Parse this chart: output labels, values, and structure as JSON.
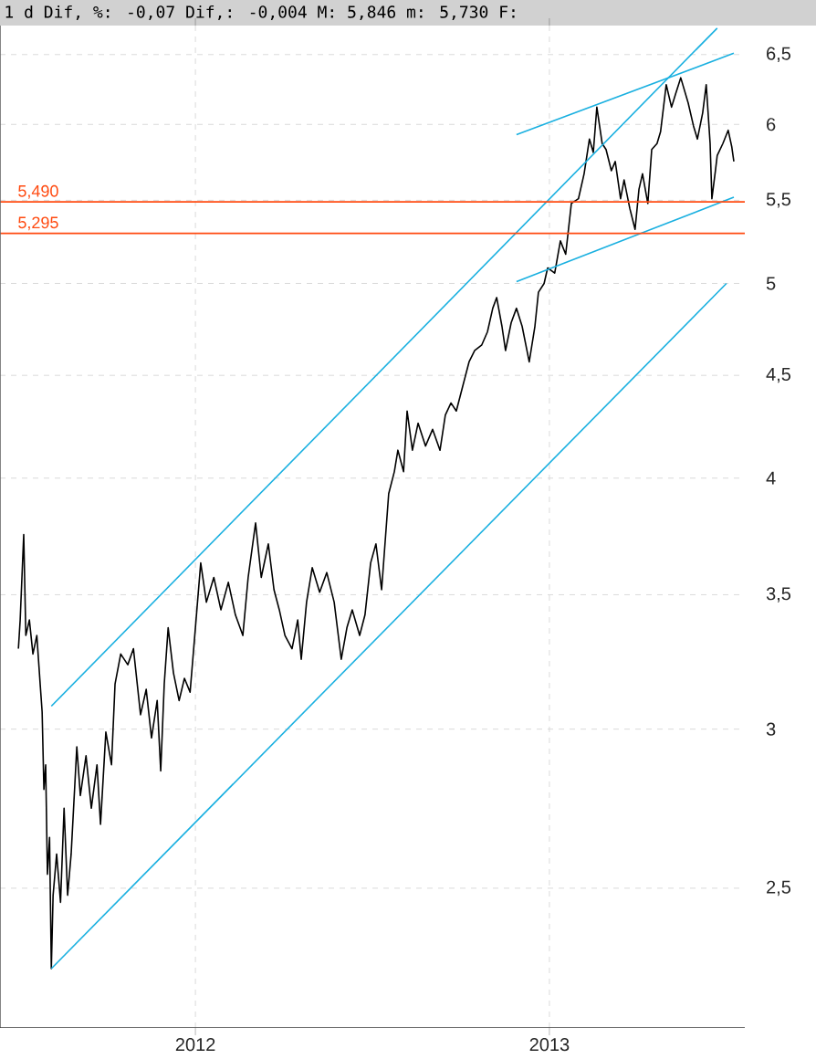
{
  "chart_data": {
    "type": "line",
    "title": "1 d Dif, %: -0,07 Dif,: -0,004 M: 5,846 m: 5,730 F:",
    "xlim": [
      2011.448,
      2013.552
    ],
    "xticks": [
      2012,
      2013
    ],
    "ylim": [
      2.13,
      6.72
    ],
    "log": true,
    "grid": true,
    "yticks": [
      {
        "value": 2.5,
        "label": "2,5"
      },
      {
        "value": 3,
        "label": "3"
      },
      {
        "value": 3.5,
        "label": "3,5"
      },
      {
        "value": 4,
        "label": "4"
      },
      {
        "value": 4.5,
        "label": "4,5"
      },
      {
        "value": 5,
        "label": "5"
      },
      {
        "value": 5.5,
        "label": "5,5"
      },
      {
        "value": 6,
        "label": "6"
      },
      {
        "value": 6.5,
        "label": "6,5"
      }
    ],
    "ref_lines": [
      {
        "axis": "y",
        "value": 5.49,
        "label": "5,490",
        "color": "#ff4a10"
      },
      {
        "axis": "y",
        "value": 5.295,
        "label": "5,295",
        "color": "#ff4a10"
      }
    ],
    "series": [
      {
        "color": "#000000",
        "x": [
          2011.5,
          2011.505,
          2011.515,
          2011.521,
          2011.531,
          2011.541,
          2011.552,
          2011.562,
          2011.567,
          2011.572,
          2011.577,
          2011.582,
          2011.588,
          2011.593,
          2011.598,
          2011.608,
          2011.619,
          2011.629,
          2011.639,
          2011.649,
          2011.665,
          2011.675,
          2011.691,
          2011.706,
          2011.722,
          2011.732,
          2011.747,
          2011.763,
          2011.773,
          2011.789,
          2011.809,
          2011.825,
          2011.845,
          2011.861,
          2011.876,
          2011.892,
          2011.902,
          2011.912,
          2011.923,
          2011.938,
          2011.954,
          2011.969,
          2011.985,
          2012.0,
          2012.015,
          2012.031,
          2012.052,
          2012.072,
          2012.093,
          2012.113,
          2012.134,
          2012.149,
          2012.17,
          2012.186,
          2012.206,
          2012.222,
          2012.237,
          2012.253,
          2012.273,
          2012.289,
          2012.299,
          2012.314,
          2012.33,
          2012.351,
          2012.371,
          2012.392,
          2012.412,
          2012.428,
          2012.443,
          2012.464,
          2012.479,
          2012.495,
          2012.51,
          2012.526,
          2012.546,
          2012.562,
          2012.572,
          2012.588,
          2012.598,
          2012.613,
          2012.629,
          2012.65,
          2012.67,
          2012.691,
          2012.706,
          2012.722,
          2012.737,
          2012.753,
          2012.773,
          2012.789,
          2012.809,
          2012.825,
          2012.84,
          2012.851,
          2012.866,
          2012.876,
          2012.892,
          2012.907,
          2012.923,
          2012.943,
          2012.959,
          2012.969,
          2012.985,
          2012.995,
          2013.015,
          2013.031,
          2013.046,
          2013.062,
          2013.082,
          2013.098,
          2013.113,
          2013.124,
          2013.134,
          2013.149,
          2013.16,
          2013.175,
          2013.186,
          2013.201,
          2013.211,
          2013.227,
          2013.242,
          2013.253,
          2013.263,
          2013.278,
          2013.289,
          2013.304,
          2013.314,
          2013.33,
          2013.345,
          2013.356,
          2013.371,
          2013.392,
          2013.407,
          2013.418,
          2013.433,
          2013.443,
          2013.454,
          2013.459,
          2013.469,
          2013.474,
          2013.49,
          2013.505,
          2013.515,
          2013.521
        ],
        "values": [
          3.29,
          3.4,
          3.75,
          3.34,
          3.4,
          3.27,
          3.34,
          3.15,
          3.06,
          2.8,
          2.88,
          2.54,
          2.65,
          2.28,
          2.48,
          2.6,
          2.46,
          2.74,
          2.48,
          2.6,
          2.94,
          2.78,
          2.91,
          2.74,
          2.88,
          2.69,
          2.99,
          2.88,
          3.16,
          3.27,
          3.23,
          3.29,
          3.05,
          3.14,
          2.97,
          3.1,
          2.86,
          3.16,
          3.37,
          3.2,
          3.1,
          3.18,
          3.13,
          3.37,
          3.63,
          3.47,
          3.57,
          3.44,
          3.55,
          3.42,
          3.34,
          3.57,
          3.8,
          3.57,
          3.71,
          3.52,
          3.44,
          3.34,
          3.29,
          3.4,
          3.25,
          3.47,
          3.61,
          3.51,
          3.59,
          3.47,
          3.25,
          3.37,
          3.44,
          3.34,
          3.42,
          3.63,
          3.71,
          3.52,
          3.93,
          4.03,
          4.13,
          4.03,
          4.32,
          4.13,
          4.26,
          4.15,
          4.23,
          4.13,
          4.3,
          4.36,
          4.32,
          4.43,
          4.57,
          4.63,
          4.66,
          4.73,
          4.86,
          4.92,
          4.76,
          4.63,
          4.78,
          4.86,
          4.76,
          4.57,
          4.76,
          4.95,
          5.0,
          5.09,
          5.06,
          5.25,
          5.17,
          5.48,
          5.51,
          5.67,
          5.9,
          5.81,
          6.12,
          5.87,
          5.83,
          5.69,
          5.75,
          5.51,
          5.63,
          5.45,
          5.32,
          5.57,
          5.67,
          5.48,
          5.83,
          5.87,
          5.95,
          6.28,
          6.12,
          6.21,
          6.33,
          6.15,
          5.99,
          5.9,
          6.08,
          6.28,
          5.87,
          5.51,
          5.69,
          5.79,
          5.87,
          5.96,
          5.85,
          5.75
        ]
      },
      {
        "color": "#1ab0e0",
        "x": [
          2011.593,
          2013.474
        ],
        "values": [
          3.08,
          6.7
        ]
      },
      {
        "color": "#1ab0e0",
        "x": [
          2011.593,
          2013.5
        ],
        "values": [
          2.28,
          5.0
        ]
      },
      {
        "color": "#1ab0e0",
        "x": [
          2012.907,
          2013.521
        ],
        "values": [
          5.93,
          6.51
        ]
      },
      {
        "color": "#1ab0e0",
        "x": [
          2012.907,
          2013.521
        ],
        "values": [
          5.01,
          5.52
        ]
      }
    ]
  }
}
